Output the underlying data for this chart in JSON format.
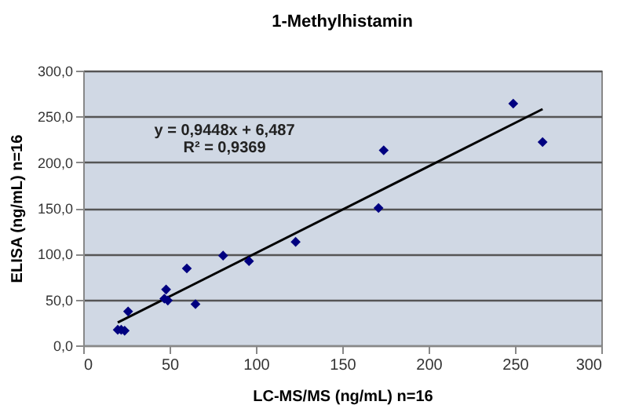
{
  "chart_data": {
    "type": "scatter",
    "title": "1-Methylhistamin",
    "xlabel": "LC-MS/MS (ng/mL) n=16",
    "ylabel": "ELISA (ng/mL) n=16",
    "annotations": [
      "y = 0,9448x + 6,487",
      "R² = 0,9369"
    ],
    "series": [
      {
        "color": "#000080",
        "x": [
          20,
          22,
          24,
          26,
          47,
          48,
          49,
          60,
          65,
          81,
          96,
          123,
          171,
          174,
          249,
          266
        ],
        "values": [
          17,
          17,
          16,
          37,
          51,
          61,
          49,
          84,
          45,
          98,
          92,
          113,
          150,
          213,
          264,
          222
        ]
      },
      {
        "type": "line",
        "marker": "none",
        "color": "#000000",
        "x": [
          20,
          266
        ],
        "values": [
          25,
          258
        ]
      }
    ],
    "xlim": [
      0,
      300
    ],
    "xticks": [
      0,
      50,
      100,
      150,
      200,
      250,
      300
    ],
    "ylim": [
      0,
      300
    ],
    "yticks": [
      {
        "value": 0,
        "label": "0,0"
      },
      {
        "value": 50,
        "label": "50,0"
      },
      {
        "value": 100,
        "label": "100,0"
      },
      {
        "value": 150,
        "label": "150,0"
      },
      {
        "value": 200,
        "label": "200,0"
      },
      {
        "value": 250,
        "label": "250,0"
      },
      {
        "value": 300,
        "label": "300,0"
      }
    ],
    "grid": "y",
    "marker": "diamond"
  }
}
